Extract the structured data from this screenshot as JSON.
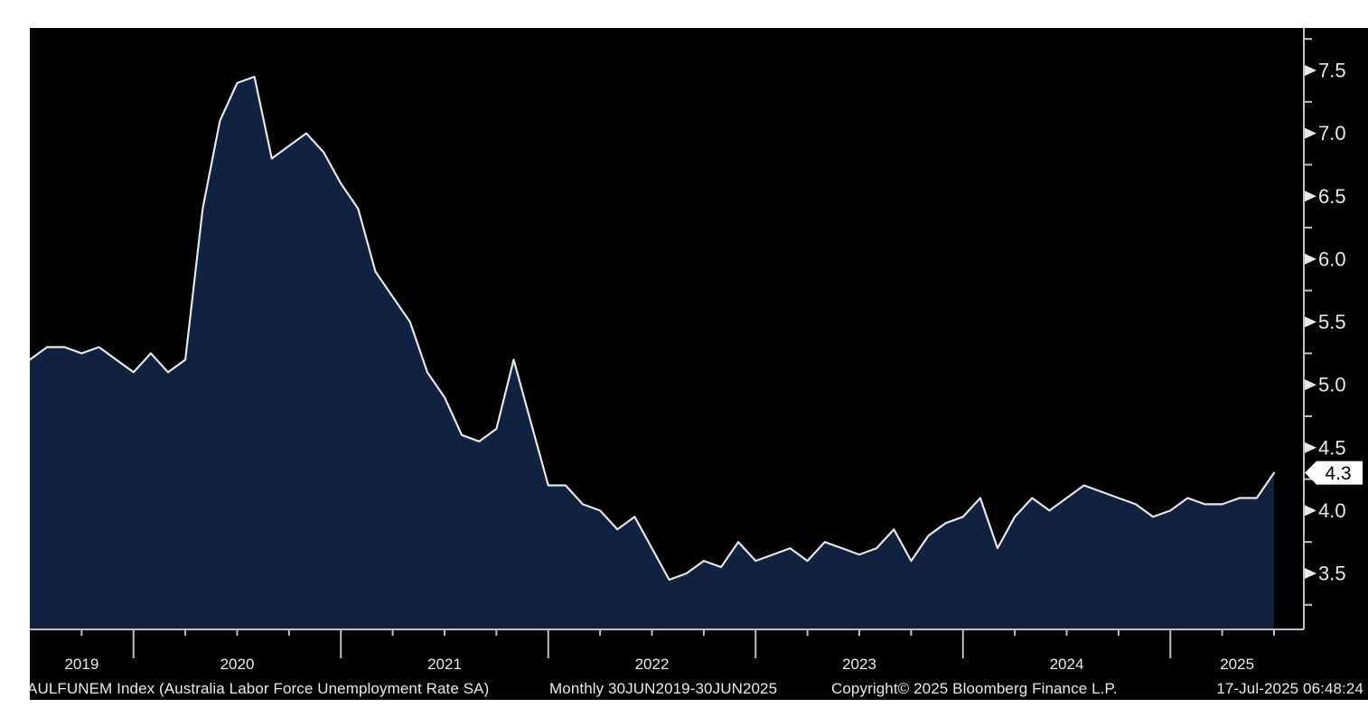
{
  "colors": {
    "page_background": "#ffffff",
    "panel_background": "#000000",
    "area_fill": "#112240",
    "line": "#e6e6e6",
    "axis": "#c0c0c0",
    "tick_marker": "#e8e8e8",
    "label_text": "#e9e9e6",
    "last_value_box": "#ffffff",
    "last_value_text": "#000000"
  },
  "footer": {
    "series_label": "AULFUNEM Index (Australia Labor Force Unemployment Rate SA)",
    "periodicity": "Monthly 30JUN2019-30JUN2025",
    "copyright": "Copyright© 2025 Bloomberg Finance L.P.",
    "timestamp": "17-Jul-2025 06:48:24"
  },
  "chart_data": {
    "type": "area",
    "title": "Australia Labor Force Unemployment Rate SA",
    "ticker": "AULFUNEM Index",
    "frequency": "Monthly",
    "x_start": "30JUN2019",
    "x_end": "30JUN2025",
    "grid": "off",
    "legend_position": "none",
    "y_axis_side": "right",
    "ylim_visible": [
      3.05,
      7.84
    ],
    "y_ticks": [
      3.5,
      4.0,
      4.5,
      5.0,
      5.5,
      6.0,
      6.5,
      7.0,
      7.5
    ],
    "y_minor_step": 0.25,
    "x_tick_labels": [
      "2019",
      "2020",
      "2021",
      "2022",
      "2023",
      "2024",
      "2025"
    ],
    "last_value": 4.3,
    "last_value_label": "4.3",
    "months": [
      "JUN2019",
      "JUL2019",
      "AUG2019",
      "SEP2019",
      "OCT2019",
      "NOV2019",
      "DEC2019",
      "JAN2020",
      "FEB2020",
      "MAR2020",
      "APR2020",
      "MAY2020",
      "JUN2020",
      "JUL2020",
      "AUG2020",
      "SEP2020",
      "OCT2020",
      "NOV2020",
      "DEC2020",
      "JAN2021",
      "FEB2021",
      "MAR2021",
      "APR2021",
      "MAY2021",
      "JUN2021",
      "JUL2021",
      "AUG2021",
      "SEP2021",
      "OCT2021",
      "NOV2021",
      "DEC2021",
      "JAN2022",
      "FEB2022",
      "MAR2022",
      "APR2022",
      "MAY2022",
      "JUN2022",
      "JUL2022",
      "AUG2022",
      "SEP2022",
      "OCT2022",
      "NOV2022",
      "DEC2022",
      "JAN2023",
      "FEB2023",
      "MAR2023",
      "APR2023",
      "MAY2023",
      "JUN2023",
      "JUL2023",
      "AUG2023",
      "SEP2023",
      "OCT2023",
      "NOV2023",
      "DEC2023",
      "JAN2024",
      "FEB2024",
      "MAR2024",
      "APR2024",
      "MAY2024",
      "JUN2024",
      "JUL2024",
      "AUG2024",
      "SEP2024",
      "OCT2024",
      "NOV2024",
      "DEC2024",
      "JAN2025",
      "FEB2025",
      "MAR2025",
      "APR2025",
      "MAY2025",
      "JUN2025"
    ],
    "values": [
      5.2,
      5.3,
      5.3,
      5.25,
      5.3,
      5.2,
      5.1,
      5.25,
      5.1,
      5.2,
      6.4,
      7.1,
      7.4,
      7.45,
      6.8,
      6.9,
      7.0,
      6.85,
      6.6,
      6.4,
      5.9,
      5.7,
      5.5,
      5.1,
      4.9,
      4.6,
      4.55,
      4.65,
      5.2,
      4.7,
      4.2,
      4.2,
      4.05,
      4.0,
      3.85,
      3.95,
      3.7,
      3.45,
      3.5,
      3.6,
      3.55,
      3.75,
      3.6,
      3.65,
      3.7,
      3.6,
      3.75,
      3.7,
      3.65,
      3.7,
      3.85,
      3.6,
      3.8,
      3.9,
      3.95,
      4.1,
      3.7,
      3.95,
      4.1,
      4.0,
      4.1,
      4.2,
      4.15,
      4.1,
      4.05,
      3.95,
      4.0,
      4.1,
      4.05,
      4.05,
      4.1,
      4.1,
      4.3
    ]
  }
}
